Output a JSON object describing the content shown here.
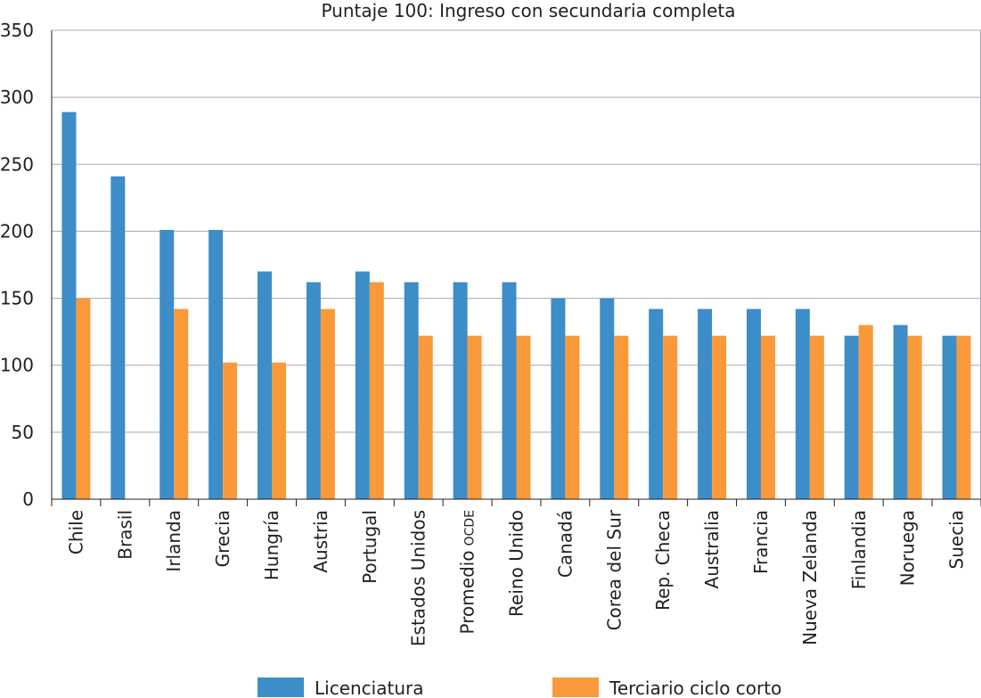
{
  "chart_data": {
    "type": "bar",
    "title": "Puntaje 100: Ingreso con secundaria completa",
    "xlabel": "",
    "ylabel": "",
    "ylim": [
      0,
      350
    ],
    "yticks": [
      0,
      50,
      100,
      150,
      200,
      250,
      300,
      350
    ],
    "grid": true,
    "legend_position": "bottom",
    "categories": [
      {
        "label": "Chile",
        "suffix": ""
      },
      {
        "label": "Brasil",
        "suffix": ""
      },
      {
        "label": "Irlanda",
        "suffix": ""
      },
      {
        "label": "Grecia",
        "suffix": ""
      },
      {
        "label": "Hungría",
        "suffix": ""
      },
      {
        "label": "Austria",
        "suffix": ""
      },
      {
        "label": "Portugal",
        "suffix": ""
      },
      {
        "label": "Estados Unidos",
        "suffix": ""
      },
      {
        "label": "Promedio",
        "suffix": "OCDE"
      },
      {
        "label": "Reino Unido",
        "suffix": ""
      },
      {
        "label": "Canadá",
        "suffix": ""
      },
      {
        "label": "Corea del Sur",
        "suffix": ""
      },
      {
        "label": "Rep. Checa",
        "suffix": ""
      },
      {
        "label": "Australia",
        "suffix": ""
      },
      {
        "label": "Francia",
        "suffix": ""
      },
      {
        "label": "Nueva Zelanda",
        "suffix": ""
      },
      {
        "label": "Finlandia",
        "suffix": ""
      },
      {
        "label": "Noruega",
        "suffix": ""
      },
      {
        "label": "Suecia",
        "suffix": ""
      }
    ],
    "series": [
      {
        "name": "Licenciatura",
        "color": "#3d8dc8",
        "values": [
          289,
          241,
          201,
          201,
          170,
          162,
          170,
          162,
          162,
          162,
          150,
          150,
          142,
          142,
          142,
          142,
          122,
          130,
          122
        ]
      },
      {
        "name": "Terciario ciclo corto",
        "color": "#f9993a",
        "values": [
          150,
          null,
          142,
          102,
          102,
          142,
          162,
          122,
          122,
          122,
          122,
          122,
          122,
          122,
          122,
          122,
          130,
          122,
          122
        ]
      }
    ]
  }
}
